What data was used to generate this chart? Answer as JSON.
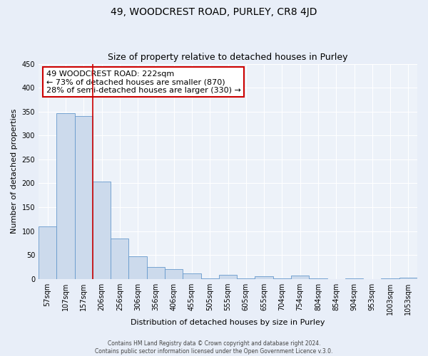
{
  "title": "49, WOODCREST ROAD, PURLEY, CR8 4JD",
  "subtitle": "Size of property relative to detached houses in Purley",
  "bar_labels": [
    "57sqm",
    "107sqm",
    "157sqm",
    "206sqm",
    "256sqm",
    "306sqm",
    "356sqm",
    "406sqm",
    "455sqm",
    "505sqm",
    "555sqm",
    "605sqm",
    "655sqm",
    "704sqm",
    "754sqm",
    "804sqm",
    "854sqm",
    "904sqm",
    "953sqm",
    "1003sqm",
    "1053sqm"
  ],
  "bar_values": [
    110,
    347,
    340,
    203,
    84,
    47,
    25,
    21,
    11,
    1,
    8,
    1,
    5,
    1,
    7,
    1,
    0,
    1,
    0,
    1,
    3
  ],
  "bar_color": "#ccdaec",
  "bar_edge_color": "#6699cc",
  "ylim": [
    0,
    450
  ],
  "yticks": [
    0,
    50,
    100,
    150,
    200,
    250,
    300,
    350,
    400,
    450
  ],
  "ylabel": "Number of detached properties",
  "xlabel": "Distribution of detached houses by size in Purley",
  "vline_color": "#cc0000",
  "annotation_title": "49 WOODCREST ROAD: 222sqm",
  "annotation_line1": "← 73% of detached houses are smaller (870)",
  "annotation_line2": "28% of semi-detached houses are larger (330) →",
  "annotation_box_color": "#ffffff",
  "annotation_box_edge": "#cc0000",
  "footer_line1": "Contains HM Land Registry data © Crown copyright and database right 2024.",
  "footer_line2": "Contains public sector information licensed under the Open Government Licence v.3.0.",
  "bg_color": "#e8eef8",
  "plot_bg_color": "#edf2f9",
  "grid_color": "#ffffff",
  "title_fontsize": 10,
  "subtitle_fontsize": 9,
  "ylabel_fontsize": 8,
  "xlabel_fontsize": 8,
  "tick_fontsize": 7,
  "annotation_fontsize": 8,
  "footer_fontsize": 5.5
}
